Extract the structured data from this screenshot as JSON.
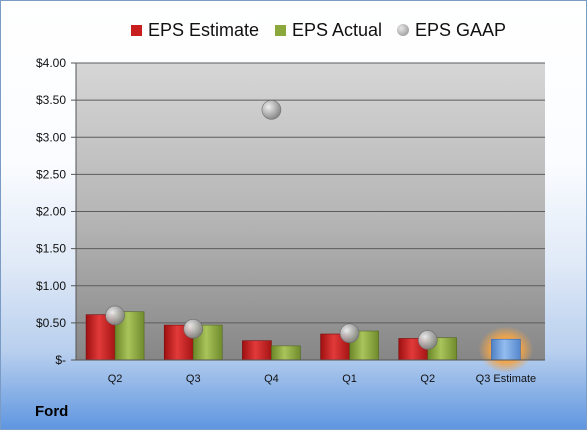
{
  "company": "Ford",
  "chart_data": {
    "type": "bar",
    "categories": [
      "Q2",
      "Q3",
      "Q4",
      "Q1",
      "Q2",
      "Q3 Estimate"
    ],
    "series": [
      {
        "name": "EPS Estimate",
        "color": "#c81e1e",
        "values": [
          0.61,
          0.47,
          0.26,
          0.35,
          0.29,
          0.28
        ]
      },
      {
        "name": "EPS Actual",
        "color": "#8aa83c",
        "values": [
          0.65,
          0.47,
          0.19,
          0.39,
          0.3,
          null
        ]
      },
      {
        "name": "EPS GAAP",
        "color": "#a6a6a6",
        "values": [
          0.6,
          0.42,
          3.37,
          0.36,
          0.27,
          null
        ]
      }
    ],
    "estimate_color": "#6e9fdc",
    "estimate_glow": "#f0a44a",
    "ylim": [
      0,
      4.0
    ],
    "yticks": [
      0,
      0.5,
      1.0,
      1.5,
      2.0,
      2.5,
      3.0,
      3.5,
      4.0
    ],
    "ytick_labels": [
      "$-",
      "$0.50",
      "$1.00",
      "$1.50",
      "$2.00",
      "$2.50",
      "$3.00",
      "$3.50",
      "$4.00"
    ],
    "grid": true,
    "legend_position": "top"
  }
}
